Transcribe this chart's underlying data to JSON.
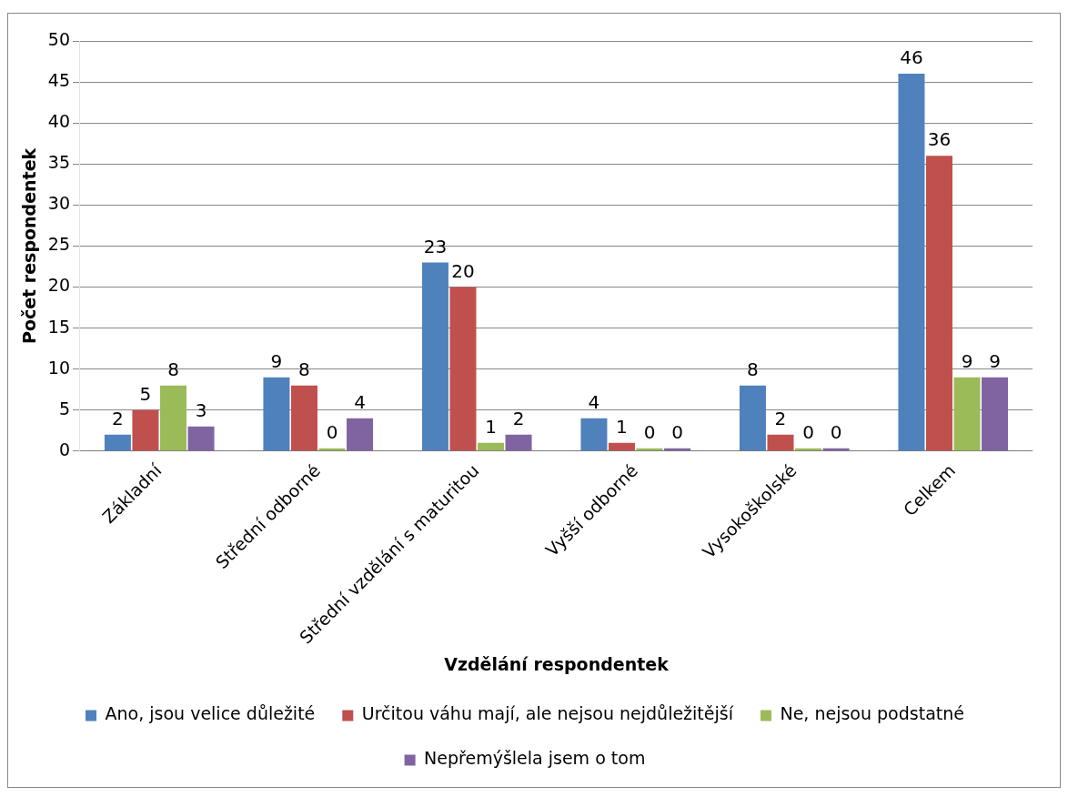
{
  "chart_data": {
    "type": "bar",
    "xlabel": "Vzdělání respondentek",
    "ylabel": "Počet respondentek",
    "categories": [
      "Základní",
      "Střední odborné",
      "Střední vzdělání s maturitou",
      "Vyšší odborné",
      "Vysokoškolské",
      "Celkem"
    ],
    "series": [
      {
        "name": "Ano, jsou velice důležité",
        "color": "#4f81bd",
        "values": [
          2,
          9,
          23,
          4,
          8,
          46
        ]
      },
      {
        "name": "Určitou váhu mají, ale nejsou nejdůležitější",
        "color": "#c0504d",
        "values": [
          5,
          8,
          20,
          1,
          2,
          36
        ]
      },
      {
        "name": "Ne, nejsou podstatné",
        "color": "#9bbb59",
        "values": [
          8,
          0,
          1,
          0,
          0,
          9
        ]
      },
      {
        "name": "Nepřemýšlela jsem o tom",
        "color": "#8064a2",
        "values": [
          3,
          4,
          2,
          0,
          0,
          9
        ]
      }
    ],
    "ylim": [
      0,
      50
    ],
    "yticks": [
      0,
      5,
      10,
      15,
      20,
      25,
      30,
      35,
      40,
      45,
      50
    ],
    "grid": "y",
    "legend": "bottom",
    "data_labels": true
  }
}
